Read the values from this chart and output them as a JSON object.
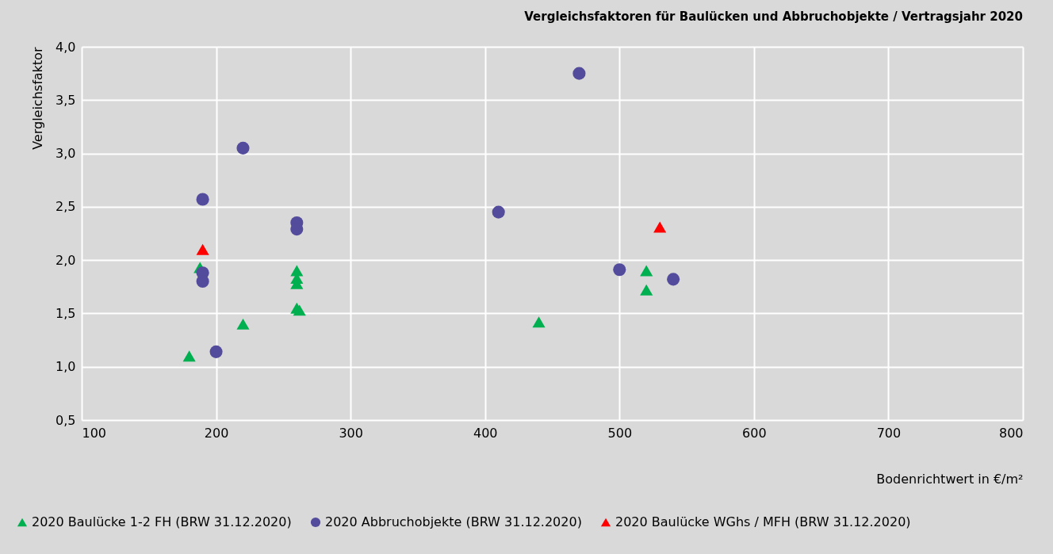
{
  "chart_data": {
    "type": "scatter",
    "title": "Vergleichsfaktoren für Baulücken und Abbruchobjekte / Vertragsjahr 2020",
    "xlabel": "Bodenrichtwert in €/m²",
    "ylabel": "Vergleichsfaktor",
    "xlim": [
      100,
      800
    ],
    "xticks": [
      100,
      200,
      300,
      400,
      500,
      600,
      700,
      800
    ],
    "ylim": [
      0.5,
      4.0
    ],
    "yticks": [
      {
        "value": 0.5,
        "label": "0,5"
      },
      {
        "value": 1.0,
        "label": "1,0"
      },
      {
        "value": 1.5,
        "label": "1,5"
      },
      {
        "value": 2.0,
        "label": "2,0"
      },
      {
        "value": 2.5,
        "label": "2,5"
      },
      {
        "value": 3.0,
        "label": "3,0"
      },
      {
        "value": 3.5,
        "label": "3,5"
      },
      {
        "value": 4.0,
        "label": "4,0"
      }
    ],
    "grid": true,
    "legend": "bottom",
    "series": [
      {
        "name": "2020 Baulücke 1-2 FH (BRW 31.12.2020)",
        "color": "#00b050",
        "marker": "triangle",
        "x": [
          180,
          188,
          220,
          260,
          260,
          260,
          260,
          262,
          440,
          520,
          520
        ],
        "values": [
          1.1,
          1.93,
          1.4,
          1.9,
          1.83,
          1.78,
          1.55,
          1.53,
          1.42,
          1.9,
          1.72
        ]
      },
      {
        "name": "2020 Abbruchobjekte (BRW 31.12.2020)",
        "color": "#534b9b",
        "marker": "circle",
        "x": [
          190,
          220,
          190,
          190,
          200,
          260,
          260,
          410,
          470,
          500,
          540
        ],
        "values": [
          2.57,
          3.05,
          1.88,
          1.8,
          1.14,
          2.35,
          2.29,
          2.45,
          3.75,
          1.91,
          1.82
        ]
      },
      {
        "name": "2020 Baulücke WGhs / MFH (BRW 31.12.2020)",
        "color": "#ff0000",
        "marker": "triangle",
        "x": [
          190,
          530
        ],
        "values": [
          2.1,
          2.31
        ]
      }
    ]
  }
}
